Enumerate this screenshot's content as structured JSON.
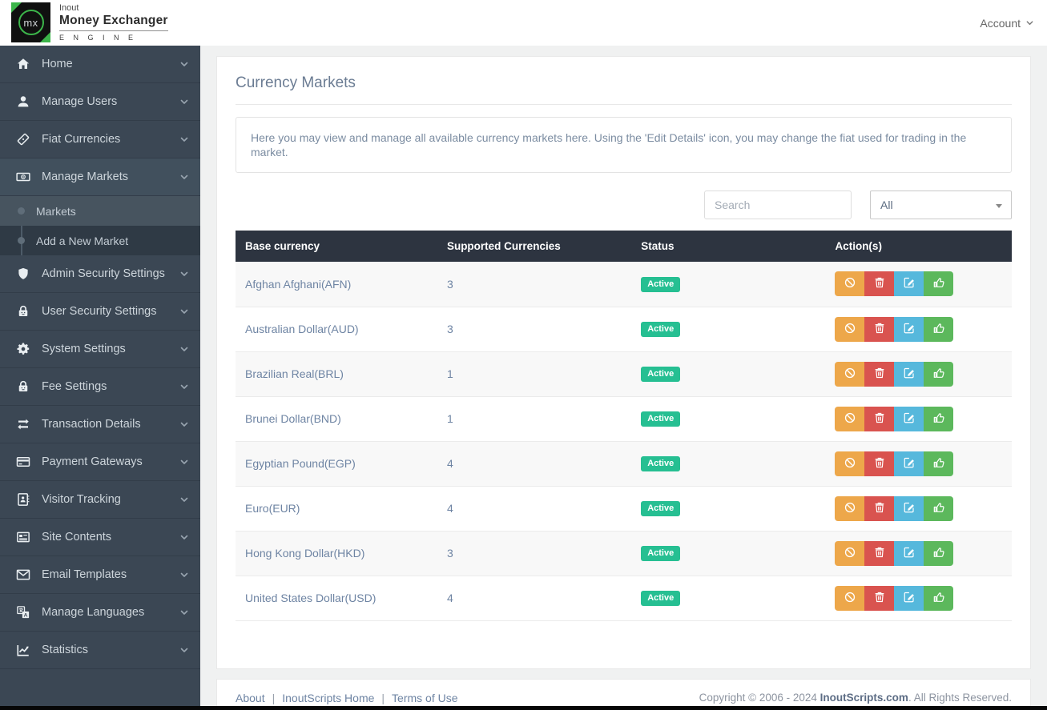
{
  "colors": {
    "page-bg": "#f0f1f1",
    "brand-green": "#3cb54a",
    "sidebar-bg": "#3b4754",
    "sidebar-item-border": "#323d49",
    "sidebar-active-bg": "#41505d",
    "submenu-bg": "#2f3a45",
    "subitem-active-bg": "#47545f",
    "sidebar-text": "#cdd5db",
    "table-header-bg": "#2d3440",
    "badge-green": "#26bf92",
    "btn-orange": "#eda74a",
    "btn-red": "#d9534f",
    "btn-blue": "#56b8dc",
    "btn-green": "#5cb85c",
    "link-blue": "#6e84a3",
    "title-color": "#6b7c93"
  },
  "brand": {
    "logo_text": "mx",
    "line1": "Inout",
    "line2": "Money Exchanger",
    "line3": "E N G I N E"
  },
  "header": {
    "account_label": "Account"
  },
  "sidebar": {
    "items": [
      {
        "label": "Home",
        "icon": "home"
      },
      {
        "label": "Manage Users",
        "icon": "users"
      },
      {
        "label": "Fiat Currencies",
        "icon": "fiat"
      },
      {
        "label": "Manage Markets",
        "icon": "markets",
        "active": true,
        "submenu": [
          {
            "label": "Markets",
            "active": true
          },
          {
            "label": "Add a New Market"
          }
        ]
      },
      {
        "label": "Admin Security Settings",
        "icon": "shield"
      },
      {
        "label": "User Security Settings",
        "icon": "userlock"
      },
      {
        "label": "System Settings",
        "icon": "gear"
      },
      {
        "label": "Fee Settings",
        "icon": "feelock"
      },
      {
        "label": "Transaction Details",
        "icon": "transfer"
      },
      {
        "label": "Payment Gateways",
        "icon": "card"
      },
      {
        "label": "Visitor Tracking",
        "icon": "addressbook"
      },
      {
        "label": "Site Contents",
        "icon": "newspaper"
      },
      {
        "label": "Email Templates",
        "icon": "envelope"
      },
      {
        "label": "Manage Languages",
        "icon": "language"
      },
      {
        "label": "Statistics",
        "icon": "chart"
      }
    ]
  },
  "main": {
    "title": "Currency Markets",
    "description": "Here you may view and manage all available currency markets here. Using the 'Edit Details' icon, you may change the fiat used for trading in the market.",
    "search_placeholder": "Search",
    "filter_value": "All",
    "table": {
      "headers": [
        "Base currency",
        "Supported Currencies",
        "Status",
        "Action(s)"
      ],
      "actions": [
        {
          "name": "disable",
          "icon": "ban"
        },
        {
          "name": "delete",
          "icon": "trash"
        },
        {
          "name": "edit",
          "icon": "edit"
        },
        {
          "name": "approve",
          "icon": "thumbsup"
        }
      ],
      "rows": [
        {
          "currency": "Afghan Afghani(AFN)",
          "supported": "3",
          "status": "Active"
        },
        {
          "currency": "Australian Dollar(AUD)",
          "supported": "3",
          "status": "Active"
        },
        {
          "currency": "Brazilian Real(BRL)",
          "supported": "1",
          "status": "Active"
        },
        {
          "currency": "Brunei Dollar(BND)",
          "supported": "1",
          "status": "Active"
        },
        {
          "currency": "Egyptian Pound(EGP)",
          "supported": "4",
          "status": "Active"
        },
        {
          "currency": "Euro(EUR)",
          "supported": "4",
          "status": "Active"
        },
        {
          "currency": "Hong Kong Dollar(HKD)",
          "supported": "3",
          "status": "Active"
        },
        {
          "currency": "United States Dollar(USD)",
          "supported": "4",
          "status": "Active"
        }
      ]
    }
  },
  "footer": {
    "links": [
      "About",
      "InoutScripts Home",
      "Terms of Use"
    ],
    "separator": "|",
    "copyright_prefix": "Copyright © 2006 - 2024 ",
    "copyright_link": "InoutScripts.com",
    "copyright_suffix": ". All Rights Reserved."
  }
}
